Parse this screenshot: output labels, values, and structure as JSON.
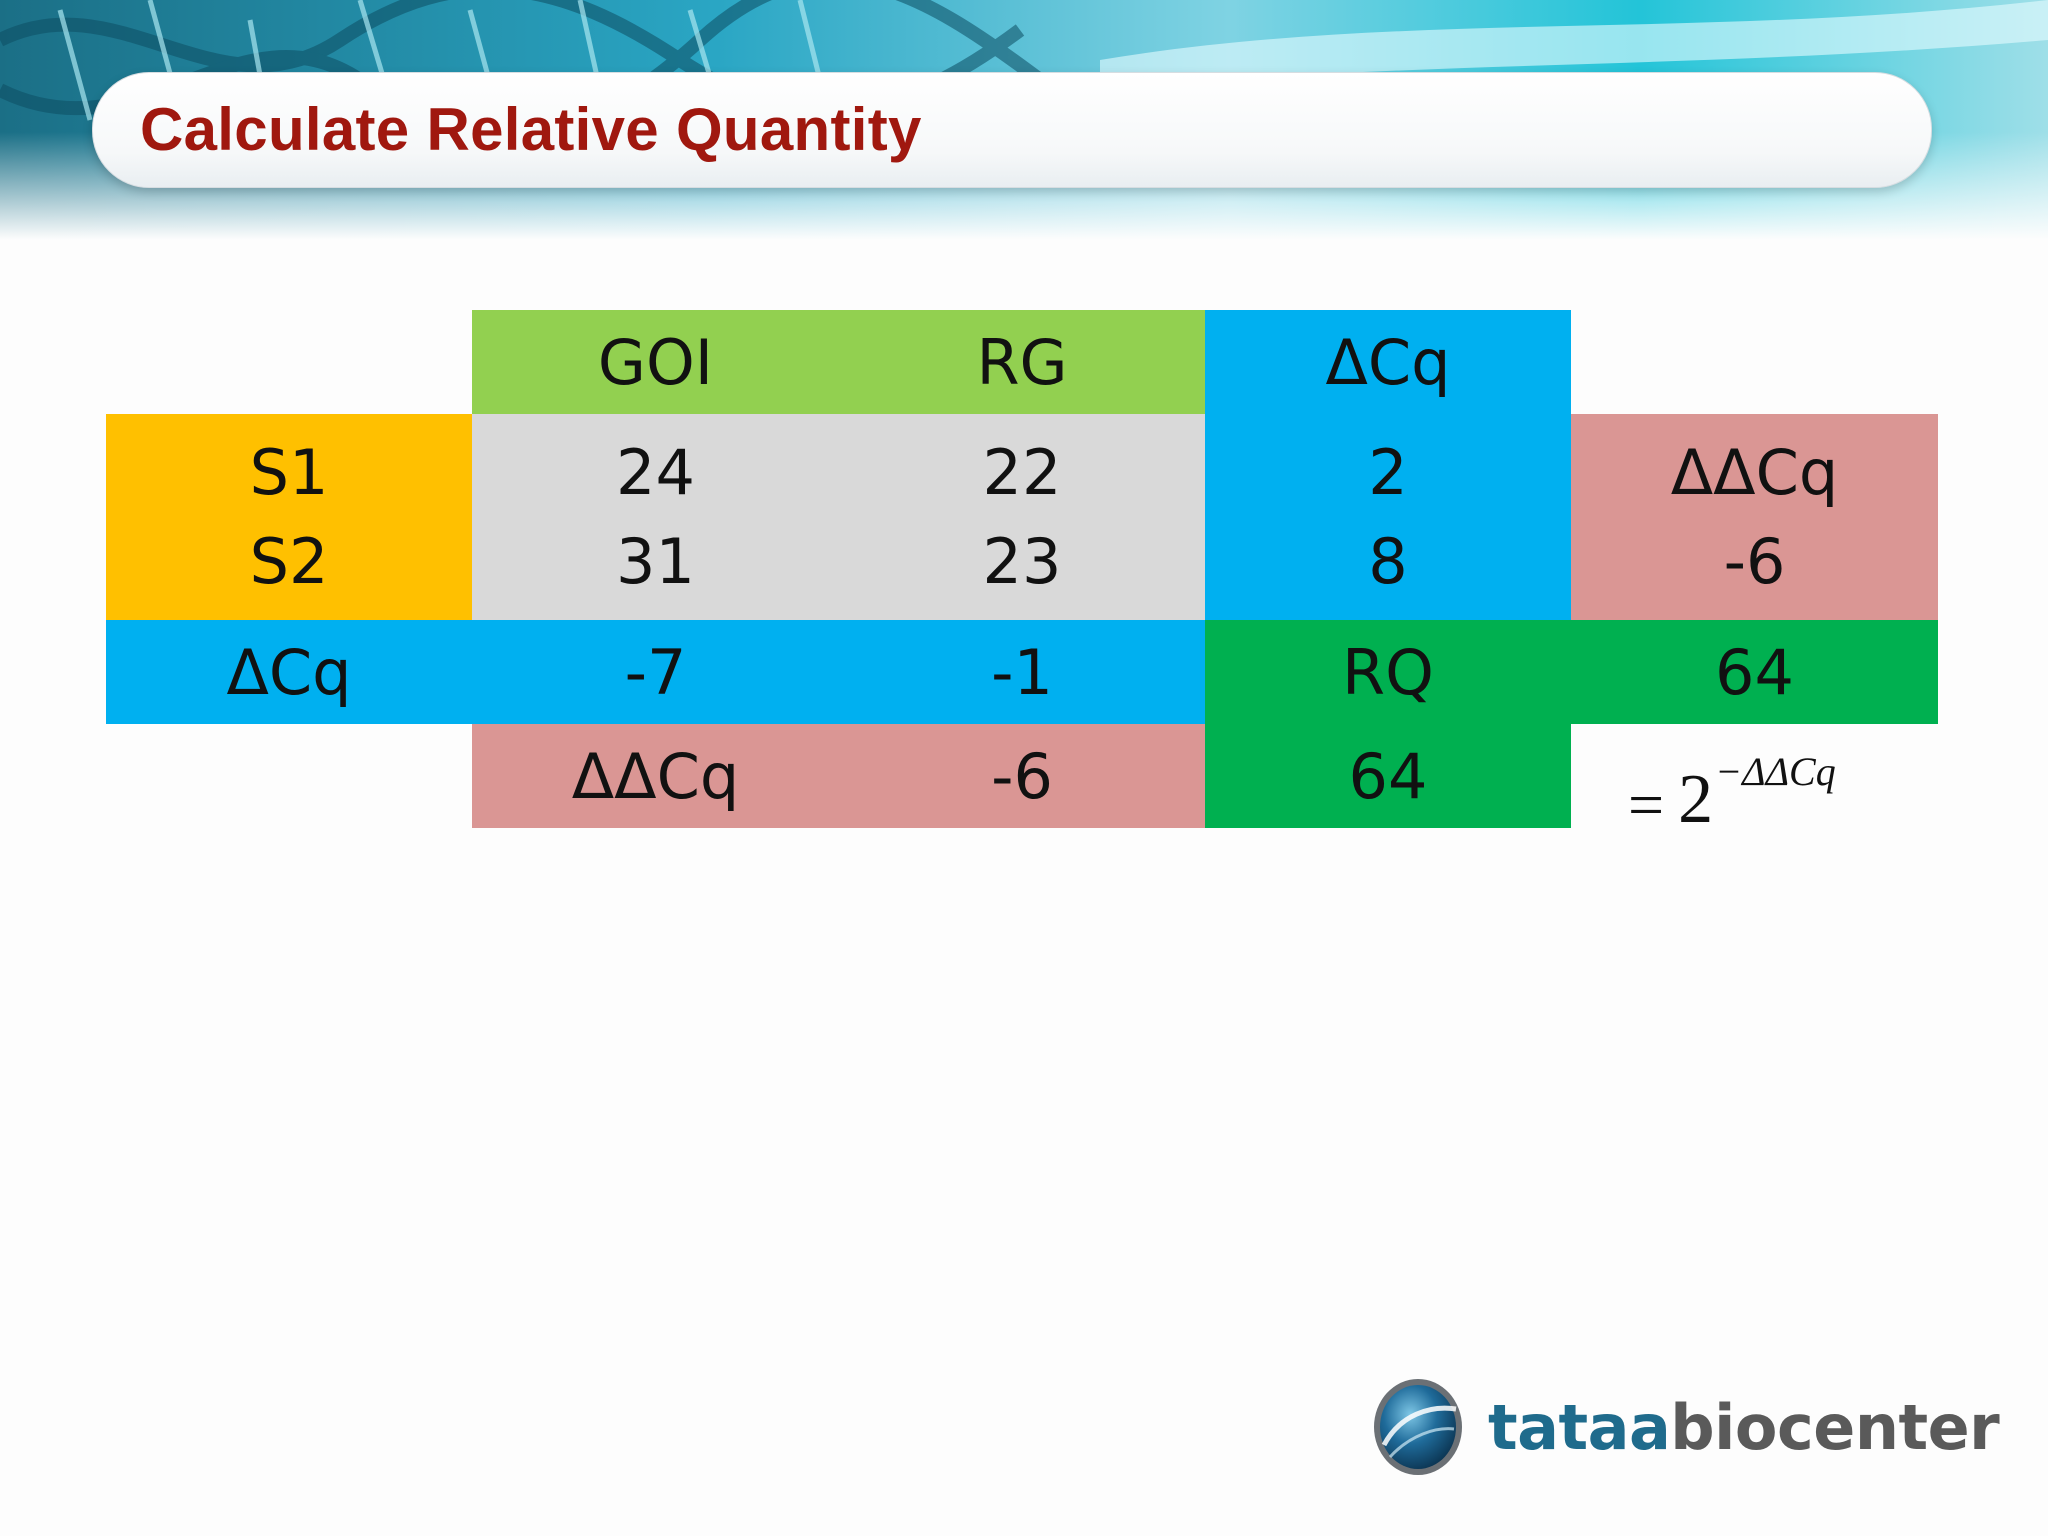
{
  "slide": {
    "title": "Calculate Relative Quantity"
  },
  "table": {
    "header_goi": "GOI",
    "header_rg": "RG",
    "header_dcq": "ΔCq",
    "s1_label": "S1",
    "s2_label": "S2",
    "s1_goi": "24",
    "s1_rg": "22",
    "s1_dcq": "2",
    "s2_goi": "31",
    "s2_rg": "23",
    "s2_dcq": "8",
    "ddcq_label_right": "ΔΔCq",
    "ddcq_value_right": "-6",
    "dcq_row_label": "ΔCq",
    "dcq_goi": "-7",
    "dcq_rg": "-1",
    "rq_label": "RQ",
    "rq_value": "64",
    "ddcq_label_bottom": "ΔΔCq",
    "ddcq_value_bottom": "-6",
    "rq_value_bottom": "64"
  },
  "formula": {
    "equals": "=",
    "base": "2",
    "exponent": "−ΔΔCq"
  },
  "logo": {
    "brand_part1": "tataa",
    "brand_part2": "biocenter"
  },
  "colors": {
    "title": "#a0180f",
    "light_green": "#92d050",
    "gray": "#d9d9d9",
    "blue": "#00b0f0",
    "orange": "#ffc000",
    "pink": "#da9694",
    "green": "#00b050"
  }
}
